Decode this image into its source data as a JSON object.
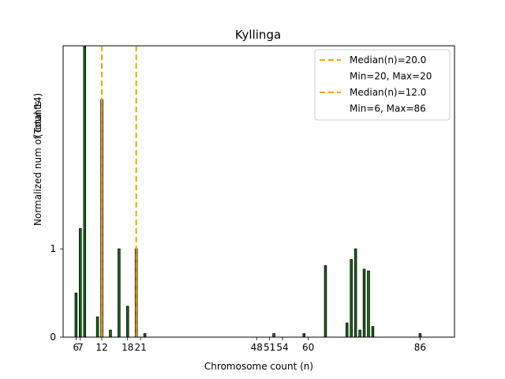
{
  "chart_data": {
    "type": "bar",
    "title": "Kyllinga",
    "xlabel": "Chromosome count (n)",
    "ylabel": "Normalized num of counts",
    "ylabel_note": "(Total 14)",
    "xlim": [
      3,
      94
    ],
    "ylim": [
      0,
      3.3
    ],
    "x_ticks": [
      6,
      7,
      12,
      18,
      21,
      48,
      51,
      54,
      60,
      86
    ],
    "x_tick_labels": [
      "6",
      "7",
      "12",
      "18",
      "21",
      "48",
      "51",
      "54",
      "60",
      "86"
    ],
    "y_ticks": [
      0,
      1
    ],
    "y_tick_labels": [
      "0",
      "1"
    ],
    "series": [
      {
        "name": "green counts",
        "color": "#1a6b1a",
        "x": [
          6,
          7,
          8,
          11,
          14,
          16,
          18,
          22,
          52,
          59,
          64,
          69,
          70,
          71,
          72,
          73,
          74,
          75,
          77,
          79,
          80,
          86
        ],
        "values": [
          0.5,
          1.23,
          3.29,
          0.23,
          0.08,
          1.0,
          0.35,
          0.04,
          0.04,
          0.04,
          0.81,
          0.16,
          0.88,
          1.0,
          0.08,
          0.77,
          0.75,
          0.12,
          0.0,
          0.0,
          0.0,
          0.04
        ]
      },
      {
        "name": "orange counts",
        "color": "#e89b2e",
        "x": [
          12,
          20
        ],
        "values": [
          2.69,
          1.0
        ]
      }
    ],
    "median_lines": [
      {
        "x": 20.0,
        "color": "#f0a500"
      },
      {
        "x": 12.0,
        "color": "#f0a500"
      }
    ],
    "legend": {
      "placement": "top-right",
      "entries": [
        {
          "label": "Median(n)=20.0",
          "color": "#f0a500",
          "style": "dashed"
        },
        {
          "label": "Min=20, Max=20",
          "color": null,
          "style": "none"
        },
        {
          "label": "Median(n)=12.0",
          "color": "#f0a500",
          "style": "dashed"
        },
        {
          "label": "Min=6, Max=86",
          "color": null,
          "style": "none"
        }
      ]
    }
  }
}
